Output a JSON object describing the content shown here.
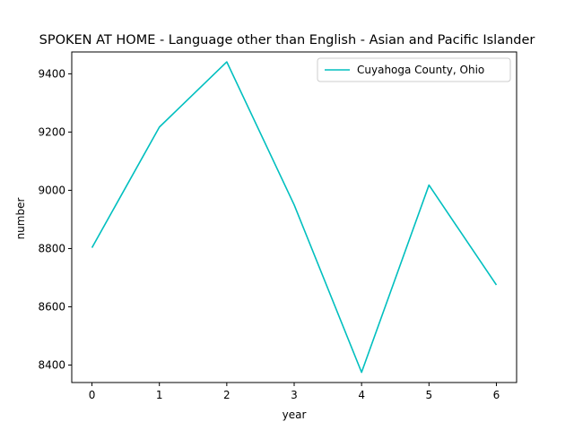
{
  "chart_data": {
    "type": "line",
    "title": "SPOKEN AT HOME - Language other than English - Asian and Pacific Islander",
    "xlabel": "year",
    "ylabel": "number",
    "x": [
      0,
      1,
      2,
      3,
      4,
      5,
      6
    ],
    "xticks": [
      "0",
      "1",
      "2",
      "3",
      "4",
      "5",
      "6"
    ],
    "yticks": [
      8400,
      8600,
      8800,
      9000,
      9200,
      9400
    ],
    "xlim": [
      -0.3,
      6.3
    ],
    "ylim": [
      8340,
      9475
    ],
    "grid": false,
    "legend_position": "top-right",
    "series": [
      {
        "name": "Cuyahoga County, Ohio",
        "color": "#00bfbf",
        "values": [
          8803,
          9217,
          9441,
          8950,
          8375,
          9018,
          8675
        ]
      }
    ]
  }
}
